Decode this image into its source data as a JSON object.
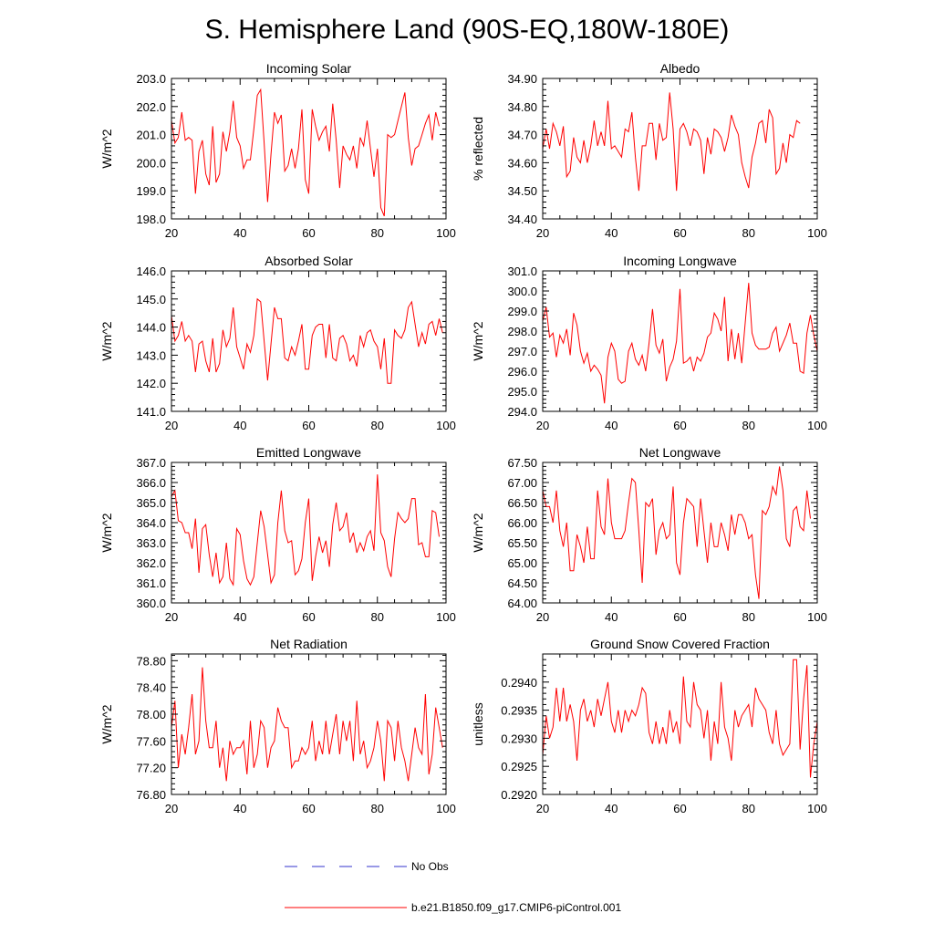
{
  "figure_title": "S. Hemisphere Land (90S-EQ,180W-180E)",
  "legend": {
    "obs_label": "No Obs",
    "obs_color": "#3333cc",
    "model_label": "b.e21.B1850.f09_g17.CMIP6-piControl.001",
    "model_color": "#ff0000"
  },
  "chart_data": [
    {
      "type": "line",
      "title": "Incoming Solar",
      "ylabel": "W/m^2",
      "xlim": [
        20,
        100
      ],
      "ylim": [
        198.0,
        203.0
      ],
      "xticks": [
        "20",
        "40",
        "60",
        "80",
        "100"
      ],
      "yticks": [
        "198.0",
        "199.0",
        "200.0",
        "201.0",
        "202.0",
        "203.0"
      ],
      "x_start": 19,
      "series": [
        {
          "name": "b.e21.B1850.f09_g17.CMIP6-piControl.001",
          "values": [
            202.3,
            201.5,
            200.7,
            200.9,
            201.8,
            200.8,
            200.9,
            200.8,
            198.9,
            200.4,
            200.8,
            199.6,
            199.2,
            201.3,
            199.3,
            199.6,
            201.1,
            200.4,
            201.1,
            202.2,
            200.9,
            200.6,
            199.8,
            200.1,
            200.1,
            201.2,
            202.4,
            202.6,
            200.7,
            198.6,
            200.3,
            201.8,
            201.4,
            201.7,
            199.7,
            199.9,
            200.5,
            199.8,
            200.5,
            201.9,
            199.4,
            198.9,
            201.9,
            201.3,
            200.8,
            201.1,
            201.3,
            200.4,
            202.1,
            200.8,
            199.1,
            200.6,
            200.3,
            200.1,
            200.6,
            199.8,
            200.9,
            200.6,
            201.5,
            200.5,
            199.5,
            200.5,
            198.4,
            198.1,
            201.0,
            200.9,
            201.0,
            201.5,
            202.0,
            202.5,
            200.9,
            199.9,
            200.5,
            200.6,
            201.0,
            201.4,
            201.7,
            200.8,
            201.8,
            201.3
          ]
        }
      ]
    },
    {
      "type": "line",
      "title": "Albedo",
      "ylabel": "% reflected",
      "xlim": [
        20,
        100
      ],
      "ylim": [
        34.4,
        34.9
      ],
      "xticks": [
        "20",
        "40",
        "60",
        "80",
        "100"
      ],
      "yticks": [
        "34.40",
        "34.50",
        "34.60",
        "34.70",
        "34.80",
        "34.90"
      ],
      "x_start": 19,
      "series": [
        {
          "name": "b.e21.B1850.f09_g17.CMIP6-piControl.001",
          "values": [
            34.79,
            34.65,
            34.72,
            34.65,
            34.74,
            34.71,
            34.66,
            34.73,
            34.55,
            34.57,
            34.69,
            34.62,
            34.6,
            34.68,
            34.6,
            34.66,
            34.75,
            34.66,
            34.71,
            34.66,
            34.82,
            34.65,
            34.66,
            34.64,
            34.62,
            34.72,
            34.71,
            34.78,
            34.62,
            34.5,
            34.66,
            34.66,
            34.74,
            34.74,
            34.61,
            34.74,
            34.68,
            34.69,
            34.85,
            34.72,
            34.5,
            34.72,
            34.74,
            34.71,
            34.66,
            34.72,
            34.71,
            34.68,
            34.56,
            34.69,
            34.63,
            34.72,
            34.71,
            34.69,
            34.64,
            34.69,
            34.77,
            34.73,
            34.7,
            34.6,
            34.55,
            34.51,
            34.62,
            34.67,
            34.74,
            34.75,
            34.67,
            34.79,
            34.76,
            34.56,
            34.58,
            34.67,
            34.6,
            34.7,
            34.69,
            34.75,
            34.74
          ]
        }
      ]
    },
    {
      "type": "line",
      "title": "Absorbed Solar",
      "ylabel": "W/m^2",
      "xlim": [
        20,
        100
      ],
      "ylim": [
        141.0,
        146.0
      ],
      "xticks": [
        "20",
        "40",
        "60",
        "80",
        "100"
      ],
      "yticks": [
        "141.0",
        "142.0",
        "143.0",
        "144.0",
        "145.0",
        "146.0"
      ],
      "x_start": 19,
      "series": [
        {
          "name": "b.e21.B1850.f09_g17.CMIP6-piControl.001",
          "values": [
            144.7,
            144.4,
            143.5,
            143.7,
            144.2,
            143.5,
            143.7,
            143.5,
            142.4,
            143.4,
            143.5,
            142.8,
            142.4,
            143.6,
            142.4,
            142.7,
            143.9,
            143.3,
            143.6,
            144.7,
            143.3,
            142.9,
            142.5,
            143.4,
            143.1,
            143.7,
            145.0,
            144.9,
            143.5,
            142.1,
            143.4,
            144.7,
            144.3,
            144.3,
            142.9,
            142.8,
            143.3,
            143.0,
            143.5,
            144.1,
            142.5,
            142.5,
            143.7,
            144.0,
            144.1,
            144.1,
            142.9,
            144.1,
            142.9,
            142.8,
            143.6,
            143.7,
            143.4,
            142.8,
            143.0,
            142.6,
            143.7,
            143.3,
            143.8,
            143.9,
            143.5,
            143.3,
            142.5,
            143.6,
            142.0,
            142.0,
            143.9,
            143.7,
            143.6,
            143.9,
            144.7,
            144.9,
            144.1,
            143.3,
            143.8,
            143.4,
            144.1,
            144.2,
            143.7,
            144.3,
            143.8
          ]
        }
      ]
    },
    {
      "type": "line",
      "title": "Incoming Longwave",
      "ylabel": "W/m^2",
      "xlim": [
        20,
        100
      ],
      "ylim": [
        294.0,
        301.0
      ],
      "xticks": [
        "20",
        "40",
        "60",
        "80",
        "100"
      ],
      "yticks": [
        "294.0",
        "295.0",
        "296.0",
        "297.0",
        "298.0",
        "299.0",
        "300.0",
        "301.0"
      ],
      "x_start": 19,
      "series": [
        {
          "name": "b.e21.B1850.f09_g17.CMIP6-piControl.001",
          "values": [
            298.3,
            298.5,
            299.2,
            297.7,
            297.9,
            296.7,
            297.8,
            297.4,
            298.1,
            296.8,
            298.9,
            298.3,
            297.0,
            296.4,
            296.9,
            296.0,
            296.3,
            296.1,
            295.8,
            294.4,
            296.7,
            297.4,
            297.0,
            295.6,
            295.4,
            295.5,
            297.0,
            297.4,
            296.6,
            296.3,
            296.8,
            296.0,
            297.4,
            299.1,
            297.3,
            296.9,
            297.6,
            295.5,
            296.2,
            296.6,
            297.5,
            300.1,
            296.4,
            296.5,
            296.7,
            296.0,
            296.7,
            296.5,
            296.9,
            297.7,
            297.9,
            298.9,
            298.6,
            298.0,
            299.7,
            296.5,
            298.1,
            296.6,
            297.9,
            296.4,
            298.4,
            300.4,
            297.9,
            297.3,
            297.1,
            297.1,
            297.1,
            297.2,
            297.9,
            298.2,
            297.0,
            297.4,
            297.8,
            298.4,
            297.4,
            297.4,
            296.0,
            295.9,
            297.9,
            298.8,
            297.8,
            297.0
          ]
        }
      ]
    },
    {
      "type": "line",
      "title": "Emitted Longwave",
      "ylabel": "W/m^2",
      "xlim": [
        20,
        100
      ],
      "ylim": [
        360.0,
        367.0
      ],
      "xticks": [
        "20",
        "40",
        "60",
        "80",
        "100"
      ],
      "yticks": [
        "360.0",
        "361.0",
        "362.0",
        "363.0",
        "364.0",
        "365.0",
        "366.0",
        "367.0"
      ],
      "x_start": 19,
      "series": [
        {
          "name": "b.e21.B1850.f09_g17.CMIP6-piControl.001",
          "values": [
            365.5,
            365.3,
            365.6,
            364.1,
            364.0,
            363.5,
            363.5,
            362.7,
            364.2,
            361.5,
            363.7,
            363.9,
            362.4,
            361.3,
            362.5,
            361.0,
            361.3,
            363.0,
            361.2,
            360.9,
            363.7,
            363.4,
            362.1,
            361.2,
            360.9,
            361.3,
            363.0,
            364.6,
            363.8,
            362.4,
            361.0,
            361.4,
            364.0,
            365.6,
            363.6,
            363.0,
            363.1,
            361.4,
            361.6,
            362.2,
            364.0,
            365.2,
            361.1,
            362.3,
            363.3,
            362.5,
            363.1,
            361.8,
            363.9,
            365.0,
            363.6,
            363.8,
            364.5,
            363.0,
            363.5,
            362.5,
            363.0,
            362.6,
            363.3,
            363.6,
            362.6,
            366.4,
            363.5,
            363.1,
            361.8,
            361.3,
            363.2,
            364.5,
            364.2,
            364.0,
            364.2,
            365.2,
            365.2,
            362.9,
            363.0,
            362.3,
            362.3,
            364.6,
            364.5,
            363.3
          ]
        }
      ]
    },
    {
      "type": "line",
      "title": "Net Longwave",
      "ylabel": "W/m^2",
      "xlim": [
        20,
        100
      ],
      "ylim": [
        64.0,
        67.5
      ],
      "xticks": [
        "20",
        "40",
        "60",
        "80",
        "100"
      ],
      "yticks": [
        "64.00",
        "64.50",
        "65.00",
        "65.50",
        "66.00",
        "66.50",
        "67.00",
        "67.50"
      ],
      "x_start": 19,
      "series": [
        {
          "name": "b.e21.B1850.f09_g17.CMIP6-piControl.001",
          "values": [
            67.3,
            66.8,
            66.4,
            66.4,
            66.0,
            66.8,
            65.8,
            65.4,
            66.0,
            64.8,
            64.8,
            65.7,
            65.4,
            65.0,
            65.9,
            65.1,
            65.1,
            66.8,
            65.9,
            65.7,
            67.1,
            66.0,
            65.6,
            65.6,
            65.6,
            65.8,
            66.5,
            67.1,
            67.0,
            65.8,
            64.5,
            66.5,
            66.4,
            66.6,
            65.2,
            65.8,
            66.0,
            65.6,
            65.7,
            66.9,
            65.0,
            64.7,
            66.0,
            66.6,
            66.5,
            66.4,
            65.4,
            66.6,
            65.8,
            65.0,
            66.0,
            65.4,
            65.4,
            66.0,
            65.7,
            65.3,
            66.2,
            65.7,
            66.2,
            66.2,
            66.0,
            65.6,
            65.7,
            64.7,
            64.1,
            66.3,
            66.2,
            66.4,
            66.9,
            66.7,
            67.4,
            66.8,
            65.6,
            65.4,
            66.3,
            66.4,
            65.9,
            65.8,
            66.8,
            66.1
          ]
        }
      ]
    },
    {
      "type": "line",
      "title": "Net Radiation",
      "ylabel": "W/m^2",
      "xlim": [
        20,
        100
      ],
      "ylim": [
        76.8,
        78.9
      ],
      "xticks": [
        "20",
        "40",
        "60",
        "80",
        "100"
      ],
      "yticks": [
        "76.80",
        "77.20",
        "77.60",
        "78.00",
        "78.40",
        "78.80"
      ],
      "x_start": 19,
      "series": [
        {
          "name": "b.e21.B1850.f09_g17.CMIP6-piControl.001",
          "values": [
            77.6,
            77.8,
            78.2,
            77.2,
            77.7,
            77.4,
            77.8,
            78.3,
            77.4,
            77.6,
            78.7,
            77.9,
            77.5,
            77.5,
            77.9,
            77.2,
            77.5,
            77.0,
            77.6,
            77.4,
            77.5,
            77.5,
            77.6,
            77.1,
            77.9,
            77.2,
            77.4,
            77.9,
            77.8,
            77.2,
            77.5,
            77.6,
            78.1,
            77.9,
            77.8,
            77.8,
            77.2,
            77.3,
            77.3,
            77.5,
            77.4,
            77.5,
            77.9,
            77.3,
            77.6,
            77.4,
            77.9,
            77.4,
            77.7,
            78.0,
            77.4,
            77.9,
            77.6,
            77.9,
            77.3,
            78.2,
            77.4,
            77.6,
            77.2,
            77.3,
            77.5,
            77.9,
            77.6,
            77.0,
            77.9,
            77.8,
            77.3,
            77.9,
            77.5,
            77.3,
            77.0,
            77.4,
            77.8,
            77.5,
            77.4,
            78.3,
            77.1,
            77.4,
            78.1,
            77.8,
            77.5
          ]
        }
      ]
    },
    {
      "type": "line",
      "title": "Ground Snow Covered Fraction",
      "ylabel": "unitless",
      "xlim": [
        20,
        100
      ],
      "ylim": [
        0.292,
        0.2945
      ],
      "xticks": [
        "20",
        "40",
        "60",
        "80",
        "100"
      ],
      "yticks": [
        "0.2920",
        "0.2925",
        "0.2930",
        "0.2935",
        "0.2940"
      ],
      "x_start": 20,
      "series": [
        {
          "name": "b.e21.B1850.f09_g17.CMIP6-piControl.001",
          "values": [
            0.2927,
            0.2934,
            0.293,
            0.2932,
            0.2939,
            0.2933,
            0.2939,
            0.2933,
            0.2936,
            0.2933,
            0.2926,
            0.2935,
            0.2937,
            0.2933,
            0.2935,
            0.2932,
            0.2937,
            0.2934,
            0.2937,
            0.294,
            0.2933,
            0.2931,
            0.2935,
            0.2931,
            0.2935,
            0.2933,
            0.2935,
            0.2934,
            0.2936,
            0.2939,
            0.2938,
            0.2931,
            0.2929,
            0.2933,
            0.2929,
            0.2932,
            0.2929,
            0.2935,
            0.2931,
            0.2933,
            0.2929,
            0.2941,
            0.2933,
            0.2932,
            0.294,
            0.2936,
            0.2935,
            0.293,
            0.2935,
            0.2926,
            0.2933,
            0.2929,
            0.294,
            0.2932,
            0.293,
            0.2926,
            0.2935,
            0.2932,
            0.2934,
            0.2935,
            0.2936,
            0.2932,
            0.2939,
            0.2937,
            0.2936,
            0.2935,
            0.2931,
            0.2929,
            0.2935,
            0.2929,
            0.2927,
            0.2928,
            0.2929,
            0.2944,
            0.2944,
            0.2928,
            0.2937,
            0.2943,
            0.2923,
            0.2929,
            0.2933
          ]
        }
      ]
    }
  ]
}
